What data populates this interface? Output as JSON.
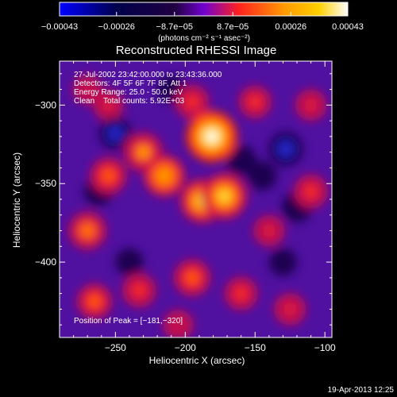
{
  "chart_data": {
    "type": "heatmap",
    "title": "Reconstructed RHESSI Image",
    "xlabel": "Heliocentric X (arcsec)",
    "ylabel": "Heliocentric Y (arcsec)",
    "xlim": [
      -290,
      -95
    ],
    "ylim": [
      -448,
      -272
    ],
    "x_ticks": [
      -250,
      -200,
      -150,
      -100
    ],
    "y_ticks": [
      -300,
      -350,
      -400
    ],
    "x_tick_labels": [
      "−250",
      "−200",
      "−150",
      "−100"
    ],
    "y_tick_labels": [
      "−300",
      "−350",
      "−400"
    ],
    "colorbar": {
      "range": [
        -0.00043,
        0.00043
      ],
      "tick_values": [
        -0.00043,
        -0.00026,
        -8.7e-05,
        8.7e-05,
        0.00026,
        0.00043
      ],
      "tick_labels": [
        "−0.00043",
        "−0.00026",
        "−8.7e−05",
        "8.7e−05",
        "0.00026",
        "0.00043"
      ],
      "unit_label": "(photons cm⁻² s⁻¹ asec⁻²)",
      "colors": [
        "#0000ff",
        "#000000",
        "#8000ff",
        "#ff3000",
        "#ff9a00",
        "#ffffff"
      ]
    },
    "annotations": [
      "27-Jul-2002 23:42:00.000 to 23:43:36.000",
      "Detectors: 4F 5F 6F 7F 8F, Att 1",
      "Energy Range: 25.0 - 50.0 keV",
      "Clean    Total counts: 5.92E+03"
    ],
    "peak_label": "Position of Peak = [−181,−320]",
    "peak_position": [
      -181,
      -320
    ],
    "blobs": [
      {
        "x": -181,
        "y": -320,
        "value": 0.00043
      },
      {
        "x": -172,
        "y": -358,
        "value": 0.00036
      },
      {
        "x": -188,
        "y": -361,
        "value": 0.00033
      },
      {
        "x": -215,
        "y": -345,
        "value": 0.0003
      },
      {
        "x": -230,
        "y": -330,
        "value": 0.00026
      },
      {
        "x": -255,
        "y": -345,
        "value": 0.00022
      },
      {
        "x": -270,
        "y": -380,
        "value": 0.00024
      },
      {
        "x": -265,
        "y": -425,
        "value": 0.0002
      },
      {
        "x": -233,
        "y": -418,
        "value": 0.00018
      },
      {
        "x": -195,
        "y": -410,
        "value": 0.00022
      },
      {
        "x": -160,
        "y": -420,
        "value": 0.00017
      },
      {
        "x": -140,
        "y": -380,
        "value": 0.00014
      },
      {
        "x": -110,
        "y": -355,
        "value": 0.00018
      },
      {
        "x": -150,
        "y": -298,
        "value": 0.00016
      },
      {
        "x": -195,
        "y": -298,
        "value": 0.00018
      },
      {
        "x": -255,
        "y": -300,
        "value": 0.00013
      },
      {
        "x": -270,
        "y": -290,
        "value": 0.00011
      },
      {
        "x": -110,
        "y": -300,
        "value": 0.00014
      },
      {
        "x": -125,
        "y": -430,
        "value": 0.00015
      },
      {
        "x": -205,
        "y": -440,
        "value": 0.00012
      },
      {
        "x": -160,
        "y": -335,
        "value": -0.00012
      },
      {
        "x": -128,
        "y": -328,
        "value": -0.00018
      },
      {
        "x": -250,
        "y": -318,
        "value": -0.00015
      },
      {
        "x": -262,
        "y": -355,
        "value": -0.0001
      },
      {
        "x": -145,
        "y": -345,
        "value": -0.0001
      },
      {
        "x": -120,
        "y": -365,
        "value": -0.00012
      },
      {
        "x": -240,
        "y": -400,
        "value": -8e-05
      },
      {
        "x": -130,
        "y": -400,
        "value": -8e-05
      },
      {
        "x": -210,
        "y": -290,
        "value": -8e-05
      }
    ]
  },
  "footer": {
    "timestamp": "19-Apr-2013 12:25"
  }
}
